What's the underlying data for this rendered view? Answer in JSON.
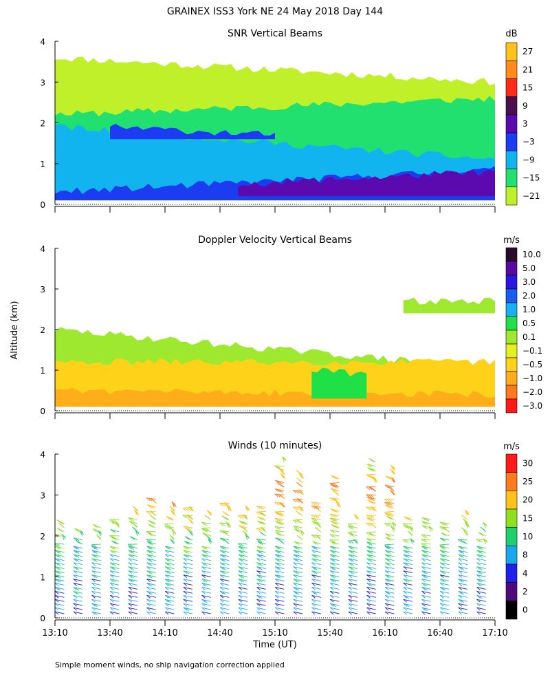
{
  "figure": {
    "title": "GRAINEX ISS3 York NE  24 May 2018 Day 144",
    "ylabel": "Altitude (km)",
    "xlabel": "Time (UT)",
    "footnote": "Simple moment winds, no ship navigation correction applied",
    "x_ticks": [
      "13:10",
      "13:40",
      "14:10",
      "14:40",
      "15:10",
      "15:40",
      "16:10",
      "16:40",
      "17:10"
    ],
    "x_range": [
      "13:10",
      "17:10"
    ],
    "y_ticks": [
      0,
      1,
      2,
      3,
      4
    ],
    "y_range_km": [
      0,
      4
    ]
  },
  "chart_data": [
    {
      "id": "snr",
      "type": "heatmap",
      "title": "SNR Vertical Beams",
      "colorbar_unit": "dB",
      "colorbar_labels": [
        "27",
        "21",
        "15",
        "9",
        "3",
        "−3",
        "−9",
        "−15",
        "−21"
      ],
      "colors": [
        "#ffc21a",
        "#ff8c1a",
        "#ff2a1a",
        "#4b0f4f",
        "#5b0ab0",
        "#1b3cf0",
        "#12b4f0",
        "#22e070",
        "#bff02a"
      ],
      "layers": [
        {
          "value_db": -21,
          "x_start": "13:10",
          "x_end": "17:10",
          "alt_start_km": 0.1,
          "alt_end_km_start": 3.6,
          "alt_end_km_end": 3.0
        },
        {
          "value_db": -15,
          "x_start": "13:10",
          "x_end": "17:10",
          "alt_start_km": 0.1,
          "alt_end_km_start": 2.2,
          "alt_end_km_end": 2.6
        },
        {
          "value_db": -9,
          "x_start": "13:10",
          "x_end": "17:10",
          "alt_start_km": 0.1,
          "alt_end_km_start": 1.9,
          "alt_end_km_end": 1.1
        },
        {
          "value_db": -3,
          "x_start": "13:10",
          "x_end": "17:10",
          "alt_start_km": 0.1,
          "alt_end_km_start": 0.3,
          "alt_end_km_end": 0.85
        },
        {
          "value_db": 3,
          "x_start": "14:50",
          "x_end": "17:10",
          "alt_start_km": 0.2,
          "alt_end_km_start": 0.5,
          "alt_end_km_end": 0.8
        },
        {
          "value_db": -3,
          "x_start": "13:40",
          "x_end": "15:10",
          "alt_start_km": 1.6,
          "alt_end_km_start": 1.9,
          "alt_end_km_end": 1.7
        }
      ]
    },
    {
      "id": "doppler",
      "type": "heatmap",
      "title": "Doppler Velocity Vertical Beams",
      "colorbar_unit": "m/s",
      "colorbar_labels": [
        "10.0",
        "5.0",
        "3.0",
        "2.0",
        "1.0",
        "0.5",
        "0.1",
        "−0.1",
        "−0.5",
        "−1.0",
        "−2.0",
        "−3.0"
      ],
      "colors": [
        "#2a0a2a",
        "#5a0aa0",
        "#2a18e0",
        "#1a5cf0",
        "#18b0f0",
        "#20e048",
        "#9ee830",
        "#e6f020",
        "#ffd21a",
        "#ffae1a",
        "#ff7a1a",
        "#ff1a1a"
      ],
      "layers": [
        {
          "value_ms": 0.1,
          "x_start": "13:10",
          "x_end": "16:30",
          "alt_start_km": 0.1,
          "alt_end_km_start": 2.0,
          "alt_end_km_end": 1.2
        },
        {
          "value_ms": -0.5,
          "x_start": "13:10",
          "x_end": "17:10",
          "alt_start_km": 0.1,
          "alt_end_km_start": 1.2,
          "alt_end_km_end": 1.2
        },
        {
          "value_ms": -1.0,
          "x_start": "13:10",
          "x_end": "17:10",
          "alt_start_km": 0.1,
          "alt_end_km_start": 0.5,
          "alt_end_km_end": 0.4
        },
        {
          "value_ms": 0.5,
          "x_start": "15:30",
          "x_end": "16:00",
          "alt_start_km": 0.3,
          "alt_end_km_start": 1.0,
          "alt_end_km_end": 0.9
        },
        {
          "value_ms": 0.1,
          "x_start": "16:20",
          "x_end": "17:10",
          "alt_start_km": 2.4,
          "alt_end_km_start": 2.7,
          "alt_end_km_end": 2.7
        }
      ]
    },
    {
      "id": "winds",
      "type": "scatter",
      "title": "Winds (10 minutes)",
      "colorbar_unit": "m/s",
      "colorbar_labels": [
        "30",
        "25",
        "20",
        "15",
        "10",
        "8",
        "4",
        "2",
        "0"
      ],
      "colors": [
        "#ff1a1a",
        "#ff7a1a",
        "#ffc21a",
        "#8ee020",
        "#20d070",
        "#18a8f0",
        "#2020e8",
        "#500a80",
        "#000000"
      ],
      "profile_times": [
        "13:15",
        "13:25",
        "13:35",
        "13:45",
        "13:55",
        "14:05",
        "14:15",
        "14:25",
        "14:35",
        "14:45",
        "14:55",
        "15:05",
        "15:15",
        "15:25",
        "15:35",
        "15:45",
        "15:55",
        "16:05",
        "16:15",
        "16:25",
        "16:35",
        "16:45",
        "16:55",
        "17:05"
      ],
      "profile_tops_km": [
        2.4,
        2.2,
        2.3,
        2.5,
        2.7,
        3.0,
        2.8,
        2.8,
        2.6,
        2.9,
        2.7,
        2.8,
        3.9,
        3.6,
        2.9,
        3.5,
        2.5,
        3.9,
        3.7,
        2.5,
        2.5,
        2.4,
        2.6,
        2.3
      ],
      "speed_profile_ms": [
        {
          "alt_km": 0.2,
          "speed": 6
        },
        {
          "alt_km": 0.8,
          "speed": 7
        },
        {
          "alt_km": 1.4,
          "speed": 9
        },
        {
          "alt_km": 2.0,
          "speed": 13
        },
        {
          "alt_km": 2.6,
          "speed": 20
        },
        {
          "alt_km": 3.2,
          "speed": 24
        },
        {
          "alt_km": 3.8,
          "speed": 14
        }
      ]
    }
  ]
}
